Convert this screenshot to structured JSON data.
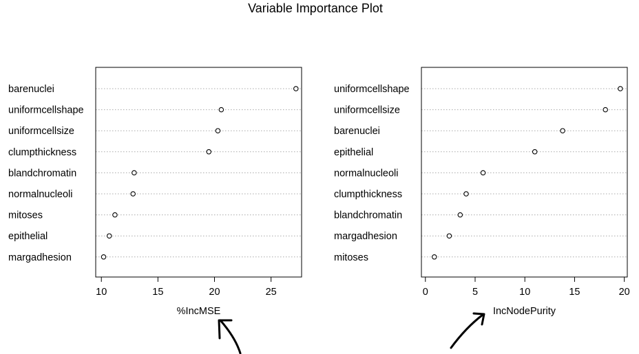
{
  "title": "Variable Importance Plot",
  "chart_data": [
    {
      "type": "scatter",
      "subtype": "dotchart",
      "xlabel": "%IncMSE",
      "xlim": [
        9.5,
        27.7
      ],
      "xticks": [
        10,
        15,
        20,
        25
      ],
      "grid": true,
      "categories": [
        "barenuclei",
        "uniformcellshape",
        "uniformcellsize",
        "clumpthickness",
        "blandchromatin",
        "normalnucleoli",
        "mitoses",
        "epithelial",
        "margadhesion"
      ],
      "values": [
        27.2,
        20.6,
        20.3,
        19.5,
        12.9,
        12.8,
        11.2,
        10.7,
        10.2
      ]
    },
    {
      "type": "scatter",
      "subtype": "dotchart",
      "xlabel": "IncNodePurity",
      "xlim": [
        -0.4,
        20.3
      ],
      "xticks": [
        0,
        5,
        10,
        15,
        20
      ],
      "grid": true,
      "categories": [
        "uniformcellshape",
        "uniformcellsize",
        "barenuclei",
        "epithelial",
        "normalnucleoli",
        "clumpthickness",
        "blandchromatin",
        "margadhesion",
        "mitoses"
      ],
      "values": [
        19.6,
        18.1,
        13.8,
        11.0,
        5.8,
        4.1,
        3.5,
        2.4,
        0.9
      ]
    }
  ],
  "annotations": [
    {
      "type": "hand-drawn-arrow",
      "points_to": "%IncMSE"
    },
    {
      "type": "hand-drawn-arrow",
      "points_to": "IncNodePurity"
    }
  ]
}
